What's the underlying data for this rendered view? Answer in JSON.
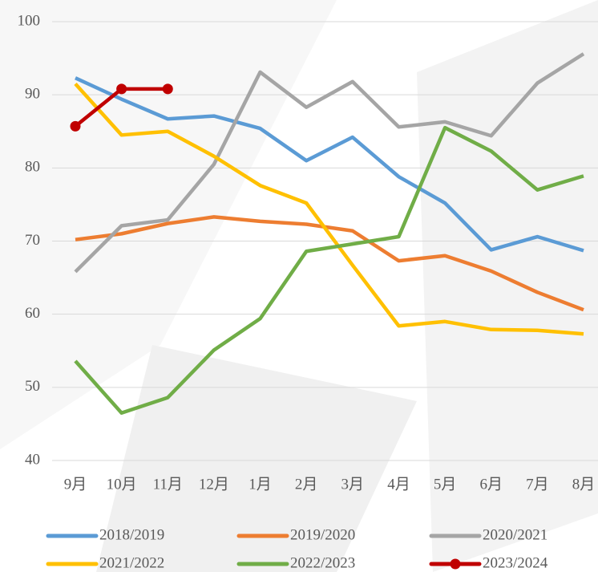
{
  "chart_data": {
    "type": "line",
    "categories": [
      "9月",
      "10月",
      "11月",
      "12月",
      "1月",
      "2月",
      "3月",
      "4月",
      "5月",
      "6月",
      "7月",
      "8月"
    ],
    "ylim": [
      40,
      100
    ],
    "yticks": [
      40,
      50,
      60,
      70,
      80,
      90,
      100
    ],
    "grid": true,
    "legend": "bottom",
    "series": [
      {
        "name": "2018/2019",
        "color": "#5b9bd5",
        "values": [
          92.3,
          89.4,
          86.7,
          87.1,
          85.4,
          81.0,
          84.2,
          78.8,
          75.2,
          68.8,
          70.6,
          68.7
        ]
      },
      {
        "name": "2019/2020",
        "color": "#ed7d31",
        "values": [
          70.2,
          71.0,
          72.4,
          73.3,
          72.7,
          72.3,
          71.4,
          67.3,
          68.0,
          65.9,
          63.0,
          60.6
        ]
      },
      {
        "name": "2020/2021",
        "color": "#a5a5a5",
        "values": [
          65.8,
          72.1,
          72.9,
          80.5,
          93.1,
          88.3,
          91.8,
          85.6,
          86.3,
          84.4,
          91.6,
          95.6
        ]
      },
      {
        "name": "2021/2022",
        "color": "#ffc000",
        "values": [
          91.5,
          84.5,
          85.0,
          81.6,
          77.6,
          75.2,
          66.7,
          58.4,
          59.0,
          57.9,
          57.8,
          57.3
        ]
      },
      {
        "name": "2022/2023",
        "color": "#70ad47",
        "values": [
          53.6,
          46.5,
          48.6,
          55.1,
          59.4,
          68.6,
          69.6,
          70.6,
          85.5,
          82.3,
          77.0,
          78.9
        ]
      },
      {
        "name": "2023/2024",
        "color": "#c00000",
        "marker": "circle",
        "values": [
          85.7,
          90.8,
          90.8,
          null,
          null,
          null,
          null,
          null,
          null,
          null,
          null,
          null
        ]
      }
    ]
  }
}
